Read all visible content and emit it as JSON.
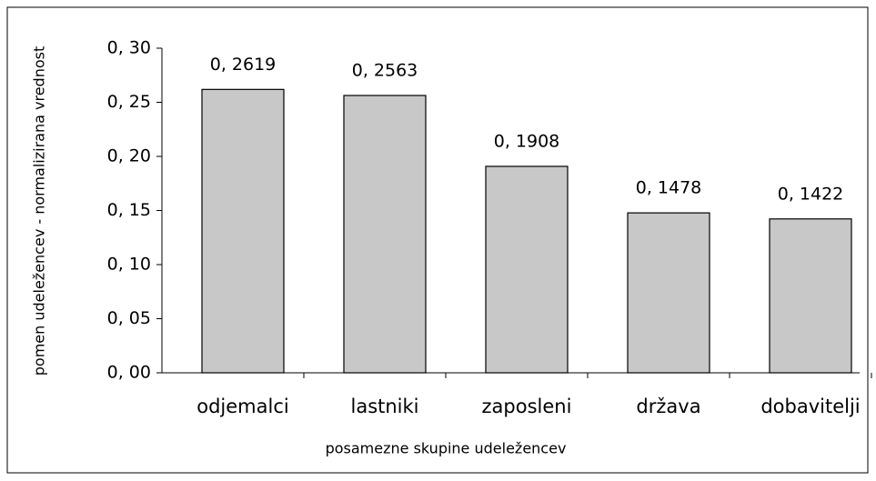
{
  "chart_data": {
    "type": "bar",
    "xlabel": "posamezne skupine udeležencev",
    "ylabel": "pomen udeležencev - normalizirana vrednost",
    "categories": [
      "odjemalci",
      "lastniki",
      "zaposleni",
      "država",
      "dobavitelji"
    ],
    "values": [
      0.2619,
      0.2563,
      0.1908,
      0.1478,
      0.1422
    ],
    "value_labels": [
      "0, 2619",
      "0, 2563",
      "0, 1908",
      "0, 1478",
      "0, 1422"
    ],
    "color": "#c8c8c8",
    "ylim": [
      0,
      0.3
    ],
    "yticks": [
      {
        "value": 0,
        "label": "0, 00"
      },
      {
        "value": 0.05,
        "label": "0, 05"
      },
      {
        "value": 0.1,
        "label": "0, 10"
      },
      {
        "value": 0.15,
        "label": "0, 15"
      },
      {
        "value": 0.2,
        "label": "0, 20"
      },
      {
        "value": 0.25,
        "label": "0, 25"
      },
      {
        "value": 0.3,
        "label": "0, 30"
      }
    ],
    "grid": false
  }
}
